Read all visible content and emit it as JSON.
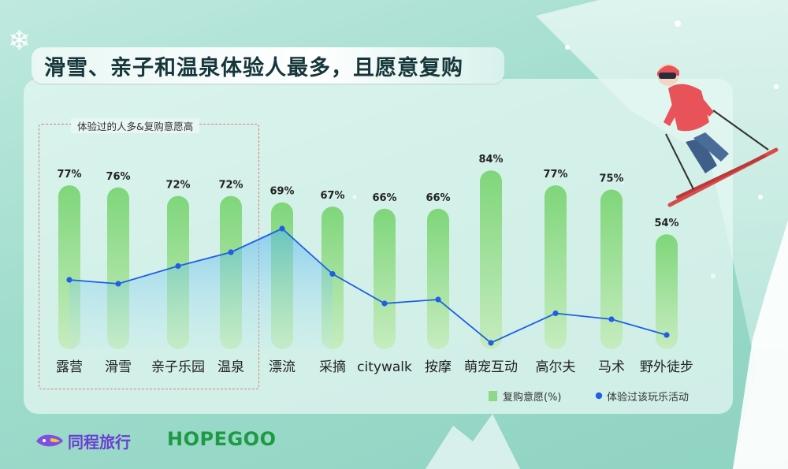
{
  "title": "滑雪、亲子和温泉体验人最多，且愿意复购",
  "highlight_label": "体验过的人多&复购意愿高",
  "brands": {
    "tongcheng": "同程旅行",
    "hopegoo": "HOPEGOO"
  },
  "colors": {
    "bar": "#7fd67a",
    "line": "#1f5fe6",
    "title": "#16363a"
  },
  "chart_data": {
    "type": "bar",
    "categories": [
      "露营",
      "滑雪",
      "亲子乐园",
      "温泉",
      "漂流",
      "采摘",
      "citywalk",
      "按摩",
      "萌宠互动",
      "高尔夫",
      "马术",
      "野外徒步"
    ],
    "series": [
      {
        "name": "复购意愿(%)",
        "type": "bar",
        "values": [
          77,
          76,
          72,
          72,
          69,
          67,
          66,
          66,
          84,
          77,
          75,
          54
        ],
        "labels": [
          "77%",
          "76%",
          "72%",
          "72%",
          "69%",
          "67%",
          "66%",
          "66%",
          "84%",
          "77%",
          "75%",
          "54%"
        ]
      },
      {
        "name": "体验过该玩乐活动",
        "type": "line",
        "values": [
          42,
          40,
          49,
          56,
          68,
          45,
          30,
          32,
          10,
          25,
          22,
          14
        ]
      }
    ],
    "legend_position": "bottom-right",
    "grid": false
  }
}
